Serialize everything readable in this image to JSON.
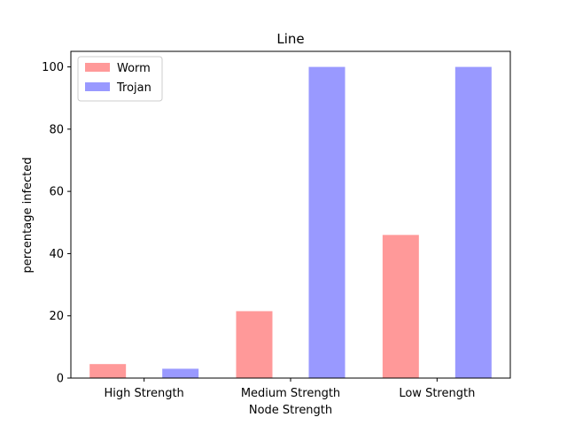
{
  "chart_data": {
    "type": "bar",
    "title": "Line",
    "xlabel": "Node Strength",
    "ylabel": "percentage infected",
    "categories": [
      "High Strength",
      "Medium Strength",
      "Low Strength"
    ],
    "series": [
      {
        "name": "Worm",
        "values": [
          4.5,
          21.5,
          46
        ],
        "color": "#ff9999"
      },
      {
        "name": "Trojan",
        "values": [
          3,
          100,
          100
        ],
        "color": "#9999ff"
      }
    ],
    "ylim": [
      0,
      105
    ],
    "yticks": [
      0,
      20,
      40,
      60,
      80,
      100
    ],
    "grid": false,
    "legend_position": "top-left"
  }
}
